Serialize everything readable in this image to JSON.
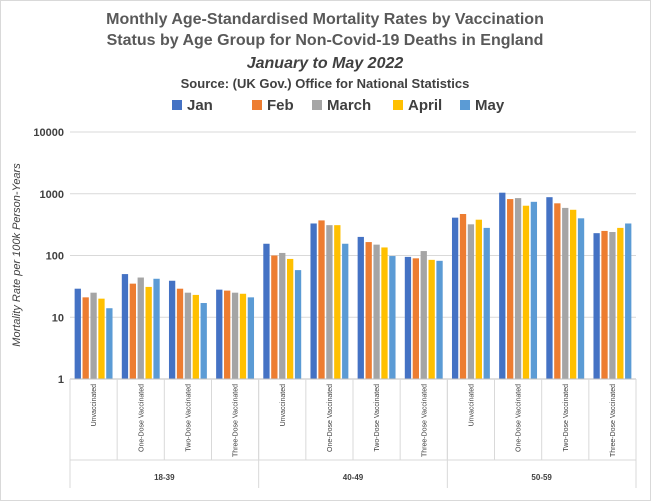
{
  "chart_data": {
    "type": "bar",
    "title_line1": "Monthly Age-Standardised Mortality Rates by Vaccination",
    "title_line2": "Status by Age Group for Non-Covid-19 Deaths in England",
    "subtitle": "January to May 2022",
    "source": "Source: (UK Gov.) Office for National Statistics",
    "ylabel": "Mortality Rate per 100k Person-Years",
    "yscale": "log",
    "ylim": [
      1,
      10000
    ],
    "yticks": [
      "1",
      "10",
      "100",
      "1000",
      "10000"
    ],
    "groups": [
      {
        "name": "18-39",
        "categories": [
          "Unvaccinated",
          "One-Dose Vaccinated",
          "Two-Dose Vaccinated",
          "Three-Dose Vaccinated"
        ]
      },
      {
        "name": "40-49",
        "categories": [
          "Unvaccinated",
          "One-Dose Vaccinated",
          "Two-Dose Vaccinated",
          "Three-Dose Vaccinated"
        ]
      },
      {
        "name": "50-59",
        "categories": [
          "Unvaccinated",
          "One-Dose Vaccinated",
          "Two-Dose Vaccinated",
          "Three-Dose Vaccinated"
        ]
      }
    ],
    "series": [
      {
        "name": "Jan",
        "color": "#4472C4",
        "values": [
          29,
          50,
          39,
          28,
          155,
          330,
          200,
          95,
          410,
          1040,
          880,
          230
        ]
      },
      {
        "name": "Feb",
        "color": "#ED7D31",
        "values": [
          21,
          35,
          29,
          27,
          100,
          370,
          165,
          90,
          470,
          820,
          700,
          250
        ]
      },
      {
        "name": "March",
        "color": "#A5A5A5",
        "values": [
          25,
          44,
          25,
          25,
          110,
          310,
          150,
          118,
          320,
          850,
          590,
          240
        ]
      },
      {
        "name": "April",
        "color": "#FFC000",
        "values": [
          20,
          31,
          23,
          24,
          88,
          310,
          135,
          85,
          380,
          640,
          550,
          280
        ]
      },
      {
        "name": "May",
        "color": "#5B9BD5",
        "values": [
          14,
          42,
          17,
          21,
          58,
          155,
          98,
          82,
          280,
          740,
          400,
          330
        ]
      }
    ]
  }
}
